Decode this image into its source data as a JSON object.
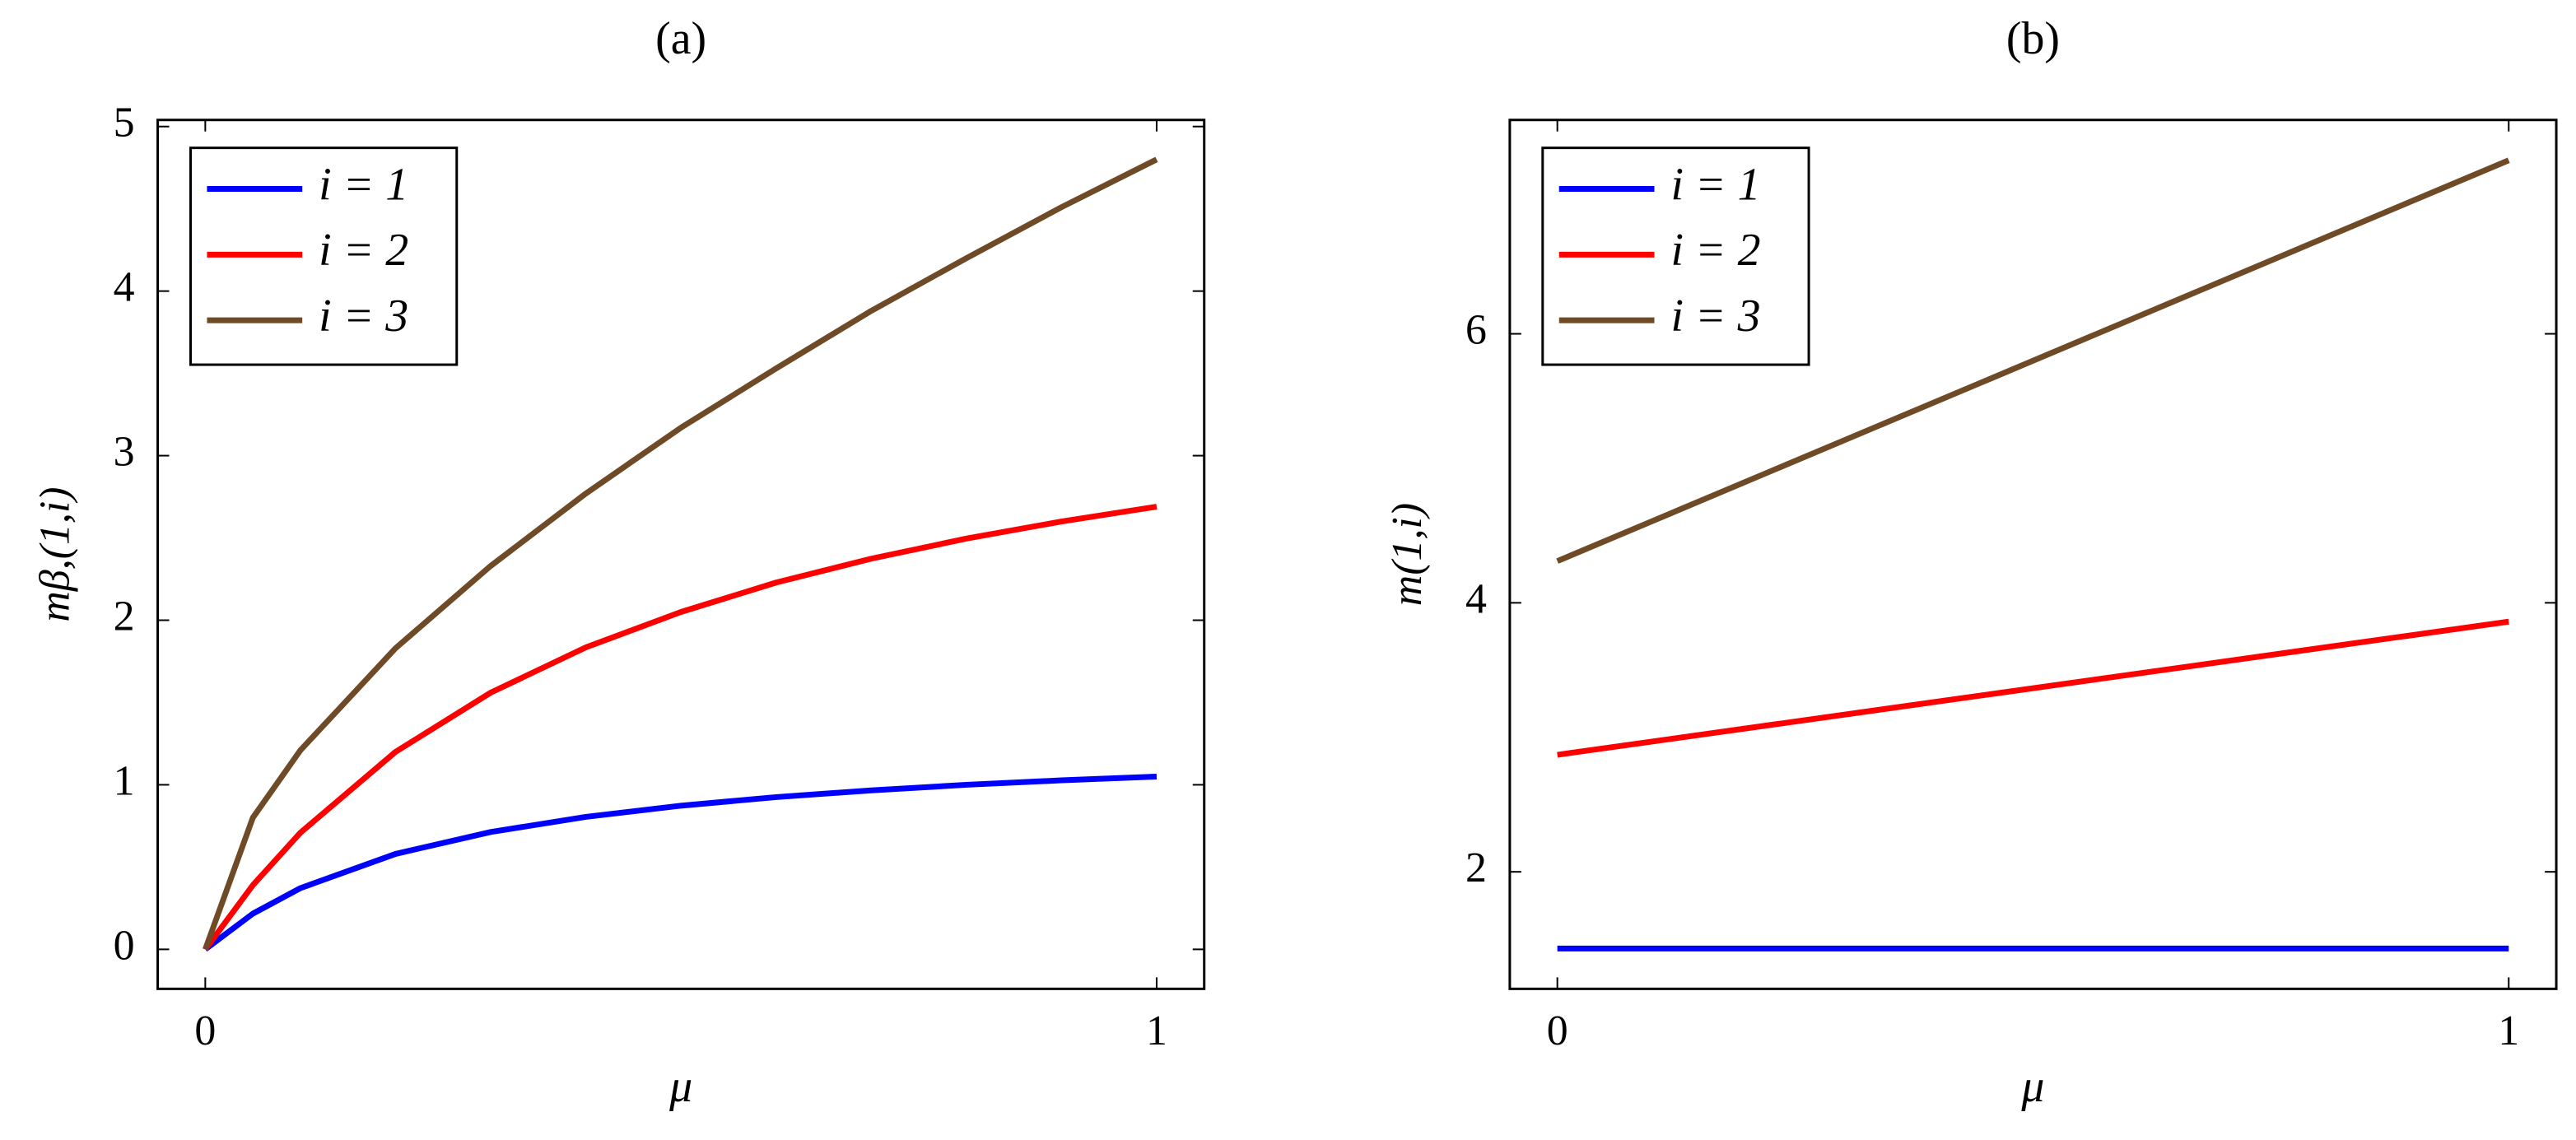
{
  "chart_data": [
    {
      "type": "line",
      "title": "(a)",
      "x_label": "μ",
      "y_label": "mβ,(1,i)",
      "x": [
        0,
        0.05,
        0.1,
        0.2,
        0.3,
        0.4,
        0.5,
        0.6,
        0.7,
        0.8,
        0.9,
        1
      ],
      "series": [
        {
          "name": "i = 1",
          "color": "#0000ff",
          "values": [
            0,
            0.217,
            0.372,
            0.58,
            0.713,
            0.805,
            0.873,
            0.925,
            0.966,
            1.0,
            1.027,
            1.05
          ]
        },
        {
          "name": "i = 2",
          "color": "#ff0000",
          "values": [
            0,
            0.39,
            0.709,
            1.2,
            1.56,
            1.835,
            2.05,
            2.229,
            2.374,
            2.496,
            2.6,
            2.69
          ]
        },
        {
          "name": "i = 3",
          "color": "#6f4a26",
          "values": [
            0,
            0.8,
            1.21,
            1.83,
            2.33,
            2.77,
            3.17,
            3.53,
            3.88,
            4.2,
            4.51,
            4.8
          ]
        }
      ],
      "xlim": [
        -0.05,
        1.05
      ],
      "xticks": [
        0,
        1
      ],
      "ylim": [
        -0.24,
        5.04
      ],
      "yticks": [
        0,
        1,
        2,
        3,
        4,
        5
      ],
      "legend": "upper-left"
    },
    {
      "type": "line",
      "title": "(b)",
      "x_label": "μ",
      "y_label": "m(1,i)",
      "x": [
        0,
        1
      ],
      "series": [
        {
          "name": "i = 1",
          "color": "#0000ff",
          "values": [
            1.43,
            1.43
          ]
        },
        {
          "name": "i = 2",
          "color": "#ff0000",
          "values": [
            2.87,
            3.86
          ]
        },
        {
          "name": "i = 3",
          "color": "#6f4a26",
          "values": [
            4.31,
            7.29
          ]
        }
      ],
      "xlim": [
        -0.05,
        1.05
      ],
      "xticks": [
        0,
        1
      ],
      "ylim": [
        1.13,
        7.59
      ],
      "yticks": [
        2,
        4,
        6
      ],
      "legend": "upper-left"
    }
  ]
}
